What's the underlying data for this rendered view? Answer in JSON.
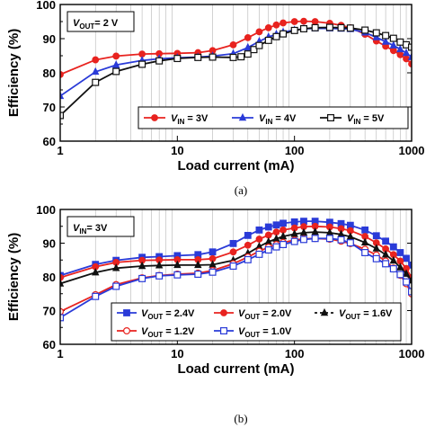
{
  "chart_data": [
    {
      "type": "line",
      "panel_label": "(a)",
      "condition": {
        "name": "V",
        "sub": "OUT",
        "value": "= 2 V"
      },
      "xlabel": "Load current (mA)",
      "ylabel": "Efficiency (%)",
      "xscale": "log",
      "xlim": [
        1,
        1000
      ],
      "ylim": [
        60,
        100
      ],
      "xticks": [
        "1",
        "10",
        "100",
        "1000"
      ],
      "yticks": [
        "60",
        "70",
        "80",
        "90",
        "100"
      ],
      "grid": "vertical minor",
      "legend_position": "bottom-right",
      "series": [
        {
          "name": "V",
          "sub": "IN",
          "value": " = 3V",
          "color": "#e8231f",
          "marker": "circle-filled",
          "x": [
            1,
            2,
            3,
            5,
            7,
            10,
            15,
            20,
            30,
            40,
            50,
            60,
            70,
            80,
            100,
            120,
            150,
            200,
            250,
            300,
            400,
            500,
            600,
            700,
            800,
            900,
            1000
          ],
          "y": [
            79.5,
            83.8,
            84.9,
            85.5,
            85.6,
            85.7,
            85.9,
            86.5,
            88.2,
            90.3,
            92.0,
            93.2,
            94.0,
            94.6,
            95.0,
            95.1,
            95.0,
            94.5,
            93.9,
            93.2,
            91.3,
            89.3,
            87.8,
            86.5,
            85.3,
            84.1,
            82.6
          ]
        },
        {
          "name": "V",
          "sub": "IN",
          "value": " = 4V",
          "color": "#2a3bd8",
          "marker": "triangle-filled",
          "x": [
            1,
            2,
            3,
            5,
            7,
            10,
            15,
            20,
            30,
            40,
            50,
            60,
            70,
            80,
            100,
            120,
            150,
            200,
            250,
            300,
            400,
            500,
            600,
            700,
            800,
            900,
            1000
          ],
          "y": [
            73.2,
            80.3,
            82.3,
            83.6,
            84.1,
            84.4,
            84.6,
            84.9,
            85.6,
            87.4,
            89.2,
            90.5,
            91.3,
            91.9,
            92.5,
            92.9,
            93.0,
            93.0,
            92.9,
            92.8,
            91.8,
            90.4,
            89.1,
            88.0,
            86.9,
            85.8,
            84.6
          ]
        },
        {
          "name": "V",
          "sub": "IN",
          "value": " = 5V",
          "color": "#111111",
          "marker": "square-open",
          "x": [
            1,
            2,
            3,
            5,
            7,
            10,
            15,
            20,
            30,
            35,
            40,
            45,
            50,
            60,
            70,
            80,
            100,
            120,
            150,
            200,
            250,
            300,
            400,
            500,
            600,
            700,
            800,
            900,
            1000
          ],
          "y": [
            67.5,
            77.2,
            80.4,
            82.5,
            83.5,
            84.2,
            84.5,
            84.6,
            84.5,
            84.7,
            85.5,
            86.8,
            88.0,
            89.5,
            90.6,
            91.4,
            92.4,
            92.9,
            93.2,
            93.3,
            93.2,
            93.1,
            92.5,
            91.7,
            90.9,
            90.1,
            89.0,
            88.2,
            87.5
          ]
        }
      ]
    },
    {
      "type": "line",
      "panel_label": "(b)",
      "condition": {
        "name": "V",
        "sub": "IN",
        "value": "= 3V"
      },
      "xlabel": "Load current (mA)",
      "ylabel": "Efficiency (%)",
      "xscale": "log",
      "xlim": [
        1,
        1000
      ],
      "ylim": [
        60,
        100
      ],
      "xticks": [
        "1",
        "10",
        "100",
        "1000"
      ],
      "yticks": [
        "60",
        "70",
        "80",
        "90",
        "100"
      ],
      "grid": "vertical minor",
      "legend_position": "bottom",
      "series": [
        {
          "name": "V",
          "sub": "OUT",
          "value": " = 2.4V",
          "color": "#2a3bd8",
          "marker": "square-filled",
          "x": [
            1,
            2,
            3,
            5,
            7,
            10,
            15,
            20,
            30,
            40,
            50,
            60,
            70,
            80,
            100,
            120,
            150,
            200,
            250,
            300,
            400,
            500,
            600,
            700,
            800,
            900,
            1000
          ],
          "y": [
            80.4,
            83.7,
            84.9,
            85.8,
            86.0,
            86.3,
            86.6,
            87.4,
            89.9,
            92.3,
            93.9,
            94.8,
            95.4,
            95.9,
            96.3,
            96.5,
            96.5,
            96.2,
            95.8,
            95.3,
            93.9,
            92.2,
            90.6,
            88.9,
            87.2,
            85.5,
            83.5
          ]
        },
        {
          "name": "V",
          "sub": "OUT",
          "value": " = 2.0V",
          "color": "#e8231f",
          "marker": "circle-filled",
          "x": [
            1,
            2,
            3,
            5,
            7,
            10,
            15,
            20,
            30,
            40,
            50,
            60,
            70,
            80,
            100,
            120,
            150,
            200,
            250,
            300,
            400,
            500,
            600,
            700,
            800,
            900,
            1000
          ],
          "y": [
            79.8,
            83.0,
            84.3,
            84.9,
            85.0,
            85.1,
            85.1,
            85.4,
            87.4,
            89.4,
            91.2,
            92.4,
            93.3,
            93.9,
            94.5,
            94.9,
            95.0,
            94.8,
            94.3,
            93.7,
            92.0,
            90.1,
            88.3,
            86.6,
            84.7,
            82.5,
            79.8
          ]
        },
        {
          "name": "V",
          "sub": "OUT",
          "value": " = 1.6V",
          "color": "#111111",
          "marker": "triangle-filled",
          "x": [
            1,
            2,
            3,
            5,
            7,
            10,
            15,
            20,
            30,
            40,
            50,
            60,
            70,
            80,
            100,
            120,
            150,
            200,
            250,
            300,
            400,
            500,
            600,
            700,
            800,
            900,
            1000
          ],
          "y": [
            78.0,
            81.3,
            82.6,
            83.2,
            83.4,
            83.5,
            83.5,
            83.6,
            84.9,
            87.0,
            89.0,
            90.4,
            91.3,
            92.0,
            92.7,
            93.1,
            93.3,
            93.1,
            92.6,
            91.9,
            90.2,
            88.4,
            86.6,
            84.8,
            82.8,
            80.9,
            78.9
          ]
        },
        {
          "name": "V",
          "sub": "OUT",
          "value": " = 1.2V",
          "color": "#e8231f",
          "marker": "circle-open",
          "x": [
            1,
            2,
            3,
            5,
            7,
            10,
            15,
            20,
            30,
            40,
            50,
            60,
            70,
            80,
            100,
            120,
            150,
            200,
            250,
            300,
            400,
            500,
            600,
            700,
            800,
            900,
            1000
          ],
          "y": [
            69.7,
            74.7,
            77.7,
            79.7,
            80.4,
            80.8,
            81.1,
            81.9,
            83.9,
            85.9,
            87.6,
            88.8,
            89.6,
            90.2,
            90.9,
            91.3,
            91.4,
            91.2,
            90.6,
            89.9,
            88.2,
            86.5,
            84.7,
            82.6,
            80.5,
            78.0,
            75.0
          ]
        },
        {
          "name": "V",
          "sub": "OUT",
          "value": " = 1.0V",
          "color": "#2a3bd8",
          "marker": "square-open",
          "x": [
            1,
            2,
            3,
            5,
            7,
            10,
            15,
            20,
            30,
            40,
            50,
            60,
            70,
            80,
            100,
            120,
            150,
            200,
            250,
            300,
            400,
            500,
            600,
            700,
            800,
            900,
            1000
          ],
          "y": [
            67.9,
            74.2,
            77.2,
            79.5,
            80.3,
            80.6,
            80.8,
            81.4,
            83.2,
            85.1,
            86.7,
            88.0,
            88.9,
            89.6,
            90.5,
            91.1,
            91.4,
            91.4,
            91.0,
            90.1,
            87.2,
            85.4,
            83.9,
            82.4,
            80.7,
            78.5,
            75.6
          ]
        }
      ]
    }
  ]
}
